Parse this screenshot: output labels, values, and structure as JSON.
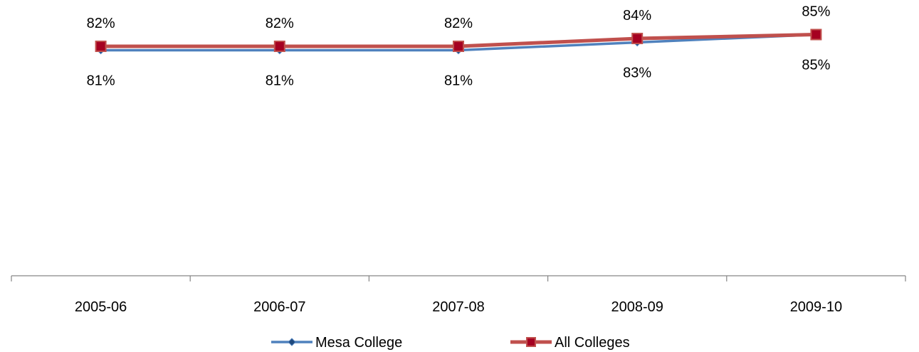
{
  "chart_data": {
    "type": "line",
    "categories": [
      "2005-06",
      "2006-07",
      "2007-08",
      "2008-09",
      "2009-10"
    ],
    "series": [
      {
        "name": "Mesa College",
        "values": [
          81,
          81,
          81,
          83,
          85
        ],
        "labels": [
          "81%",
          "81%",
          "81%",
          "83%",
          "85%"
        ],
        "color": "#4F81BD",
        "marker": "diamond",
        "marker_color": "#1F497D",
        "label_position": "below"
      },
      {
        "name": "All Colleges",
        "values": [
          82,
          82,
          82,
          84,
          85
        ],
        "labels": [
          "82%",
          "82%",
          "82%",
          "84%",
          "85%"
        ],
        "color": "#C0504D",
        "marker": "square",
        "marker_color": "#A50021",
        "label_position": "above"
      }
    ],
    "value_unit": "%",
    "grid": false,
    "legend_position": "bottom"
  }
}
